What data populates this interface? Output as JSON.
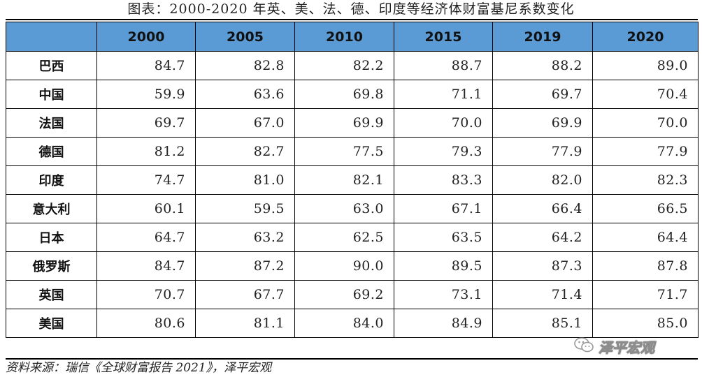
{
  "title": "图表：2000-2020 年英、美、法、德、印度等经济体财富基尼系数变化",
  "table": {
    "header": [
      "",
      "2000",
      "2005",
      "2010",
      "2015",
      "2019",
      "2020"
    ],
    "rows": [
      {
        "country": "巴西",
        "values": [
          "84.7",
          "82.8",
          "82.2",
          "88.7",
          "88.2",
          "89.0"
        ]
      },
      {
        "country": "中国",
        "values": [
          "59.9",
          "63.6",
          "69.8",
          "71.1",
          "69.7",
          "70.4"
        ]
      },
      {
        "country": "法国",
        "values": [
          "69.7",
          "67.0",
          "69.9",
          "70.0",
          "69.9",
          "70.0"
        ]
      },
      {
        "country": "德国",
        "values": [
          "81.2",
          "82.7",
          "77.5",
          "79.3",
          "77.9",
          "77.9"
        ]
      },
      {
        "country": "印度",
        "values": [
          "74.7",
          "81.0",
          "82.1",
          "83.3",
          "82.0",
          "82.3"
        ]
      },
      {
        "country": "意大利",
        "values": [
          "60.1",
          "59.5",
          "63.0",
          "67.1",
          "66.4",
          "66.5"
        ]
      },
      {
        "country": "日本",
        "values": [
          "64.7",
          "63.2",
          "62.5",
          "63.5",
          "64.2",
          "64.4"
        ]
      },
      {
        "country": "俄罗斯",
        "values": [
          "84.7",
          "87.2",
          "90.0",
          "89.5",
          "87.3",
          "87.8"
        ]
      },
      {
        "country": "英国",
        "values": [
          "70.7",
          "67.7",
          "69.2",
          "73.1",
          "71.4",
          "71.7"
        ]
      },
      {
        "country": "美国",
        "values": [
          "80.6",
          "81.1",
          "84.0",
          "84.9",
          "85.1",
          "85.0"
        ]
      }
    ]
  },
  "source": "资料来源：瑞信《全球财富报告 2021》，泽平宏观",
  "watermark": {
    "text": "泽平宏观",
    "icon": "wechat-logo-icon"
  },
  "colors": {
    "header_background": "#5b9bd5",
    "border": "#000000"
  }
}
